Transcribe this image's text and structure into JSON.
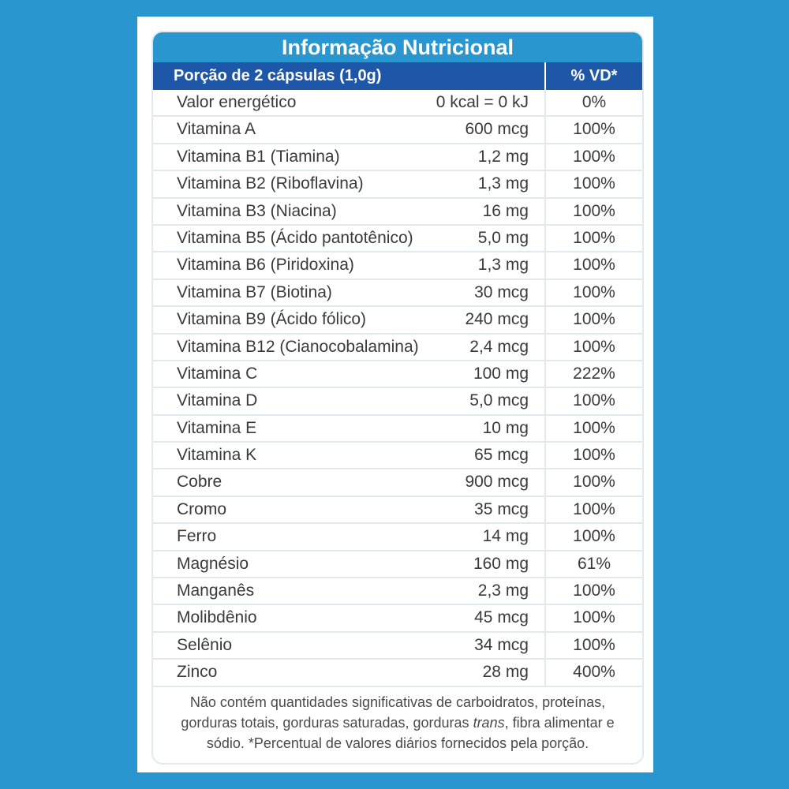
{
  "label": {
    "title": "Informação Nutricional",
    "portion": "Porção de 2 cápsulas (1,0g)",
    "vd_header": "% VD*",
    "rows": [
      {
        "name": "Valor energético",
        "amount": "0 kcal = 0 kJ",
        "vd": "0%"
      },
      {
        "name": "Vitamina A",
        "amount": "600 mcg",
        "vd": "100%"
      },
      {
        "name": "Vitamina B1 (Tiamina)",
        "amount": "1,2 mg",
        "vd": "100%"
      },
      {
        "name": "Vitamina B2 (Riboflavina)",
        "amount": "1,3 mg",
        "vd": "100%"
      },
      {
        "name": "Vitamina B3 (Niacina)",
        "amount": "16 mg",
        "vd": "100%"
      },
      {
        "name": "Vitamina B5 (Ácido pantotênico)",
        "amount": "5,0 mg",
        "vd": "100%"
      },
      {
        "name": "Vitamina B6 (Piridoxina)",
        "amount": "1,3 mg",
        "vd": "100%"
      },
      {
        "name": "Vitamina B7 (Biotina)",
        "amount": "30 mcg",
        "vd": "100%"
      },
      {
        "name": "Vitamina B9 (Ácido fólico)",
        "amount": "240 mcg",
        "vd": "100%"
      },
      {
        "name": "Vitamina B12 (Cianocobalamina)",
        "amount": "2,4 mcg",
        "vd": "100%"
      },
      {
        "name": "Vitamina C",
        "amount": "100 mg",
        "vd": "222%"
      },
      {
        "name": "Vitamina D",
        "amount": "5,0 mcg",
        "vd": "100%"
      },
      {
        "name": "Vitamina E",
        "amount": "10 mg",
        "vd": "100%"
      },
      {
        "name": "Vitamina K",
        "amount": "65 mcg",
        "vd": "100%"
      },
      {
        "name": "Cobre",
        "amount": "900 mcg",
        "vd": "100%"
      },
      {
        "name": "Cromo",
        "amount": "35 mcg",
        "vd": "100%"
      },
      {
        "name": "Ferro",
        "amount": "14 mg",
        "vd": "100%"
      },
      {
        "name": "Magnésio",
        "amount": "160 mg",
        "vd": "61%"
      },
      {
        "name": "Manganês",
        "amount": "2,3 mg",
        "vd": "100%"
      },
      {
        "name": "Molibdênio",
        "amount": "45 mcg",
        "vd": "100%"
      },
      {
        "name": "Selênio",
        "amount": "34 mcg",
        "vd": "100%"
      },
      {
        "name": "Zinco",
        "amount": "28 mg",
        "vd": "400%"
      }
    ],
    "footnote": {
      "before_italic": "Não contém quantidades significativas de carboidratos, proteínas, gorduras totais, gorduras saturadas, gorduras ",
      "italic": "trans",
      "after_italic": ", fibra alimentar e sódio. *Percentual de valores diários fornecidos pela porção."
    }
  },
  "colors": {
    "background": "#2a96d0",
    "title_bar": "#2a96d0",
    "subheader_bar": "#1f57a8"
  }
}
